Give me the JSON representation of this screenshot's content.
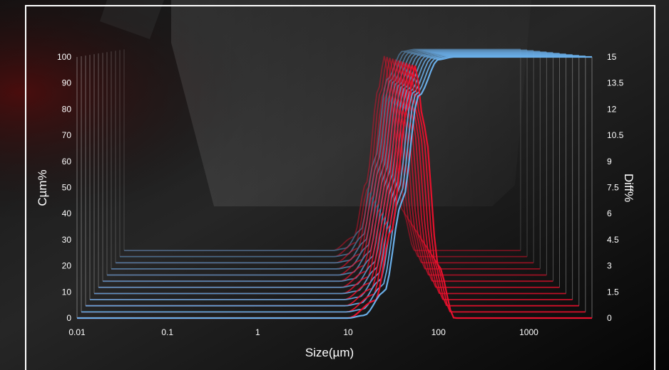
{
  "chart_data": {
    "type": "line",
    "xlabel": "Size(µm)",
    "ylabel": "Cµm%",
    "y2label": "Diff%",
    "x_scale": "log",
    "xlim": [
      0.01,
      5000
    ],
    "ylim": [
      0,
      100
    ],
    "y2lim": [
      0,
      15
    ],
    "x_tick_labels": [
      "0.01",
      "0.1",
      "1",
      "10",
      "100",
      "1000"
    ],
    "y_tick_labels": [
      "0",
      "10",
      "20",
      "30",
      "40",
      "50",
      "60",
      "70",
      "80",
      "90",
      "100"
    ],
    "y2_tick_labels": [
      "0",
      "1.5",
      "3",
      "4.5",
      "6",
      "7.5",
      "9",
      "10.5",
      "12",
      "13.5",
      "15"
    ],
    "grid": false,
    "legend": "none",
    "series": [
      {
        "kind": "cumulative",
        "values": [
          {
            "x": 10,
            "y": 0
          },
          {
            "x": 15,
            "y": 1
          },
          {
            "x": 25,
            "y": 10
          },
          {
            "x": 40,
            "y": 45
          },
          {
            "x": 60,
            "y": 85
          },
          {
            "x": 100,
            "y": 99
          },
          {
            "x": 150,
            "y": 100
          },
          {
            "x": 5000,
            "y": 100
          }
        ]
      },
      {
        "kind": "differential",
        "values": [
          {
            "x": 10,
            "y": 0
          },
          {
            "x": 20,
            "y": 1
          },
          {
            "x": 30,
            "y": 5
          },
          {
            "x": 45,
            "y": 12
          },
          {
            "x": 55,
            "y": 14.5
          },
          {
            "x": 70,
            "y": 11
          },
          {
            "x": 100,
            "y": 3
          },
          {
            "x": 150,
            "y": 0
          },
          {
            "x": 5000,
            "y": 0
          }
        ]
      }
    ],
    "colors": {
      "cumulative": "#6aaee8",
      "differential": "#e8112d",
      "frame": "#ffffff"
    }
  }
}
